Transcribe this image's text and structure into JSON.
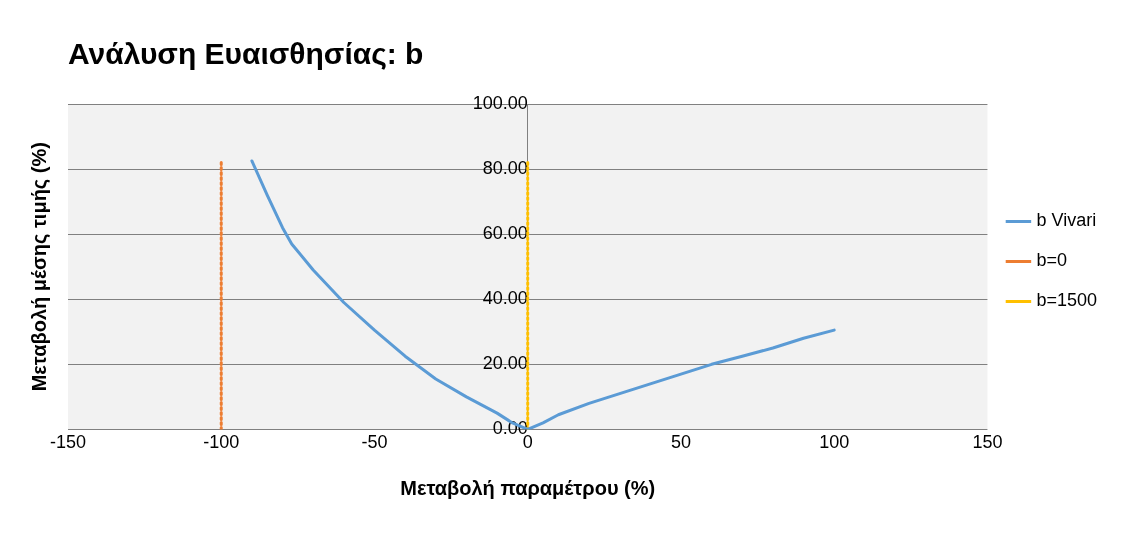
{
  "chart_data": {
    "type": "line",
    "title": "Ανάλυση Ευαισθησίας: b",
    "xlabel": "Μεταβολή παραμέτρου (%)",
    "ylabel": "Μεταβολή μέσης τιμής (%)",
    "xlim": [
      -150,
      150
    ],
    "xticks": [
      -150,
      -100,
      -50,
      0,
      50,
      100,
      150
    ],
    "ylim": [
      0,
      100
    ],
    "yticks": [
      {
        "value": 0,
        "label": "0.00"
      },
      {
        "value": 20,
        "label": "20.00"
      },
      {
        "value": 40,
        "label": "40.00"
      },
      {
        "value": 60,
        "label": "60.00"
      },
      {
        "value": 80,
        "label": "80.00"
      },
      {
        "value": 100,
        "label": "100.00"
      }
    ],
    "grid": "y",
    "legend": "right",
    "marker": "none",
    "series": [
      {
        "name": "b Vivari",
        "color": "#5b9bd5",
        "line_style": "solid",
        "x": [
          -90,
          -85,
          -80,
          -77,
          -70,
          -60,
          -50,
          -40,
          -30,
          -20,
          -10,
          -5,
          0,
          5,
          10,
          20,
          30,
          40,
          50,
          60,
          70,
          80,
          90,
          100
        ],
        "values": [
          82.5,
          72,
          62,
          57,
          49,
          39,
          30.5,
          22.5,
          15.5,
          10,
          5,
          2,
          0,
          2,
          4.5,
          8,
          11,
          14,
          17,
          20,
          22.5,
          25,
          28,
          30.5
        ]
      },
      {
        "name": "b=0",
        "color": "#ed7d31",
        "line_style": "dotted",
        "x": [
          -100,
          -100
        ],
        "values": [
          0,
          82.5
        ]
      },
      {
        "name": "b=1500",
        "color": "#ffc000",
        "line_style": "dotted",
        "x": [
          0,
          0
        ],
        "values": [
          0,
          82.5
        ]
      }
    ]
  }
}
